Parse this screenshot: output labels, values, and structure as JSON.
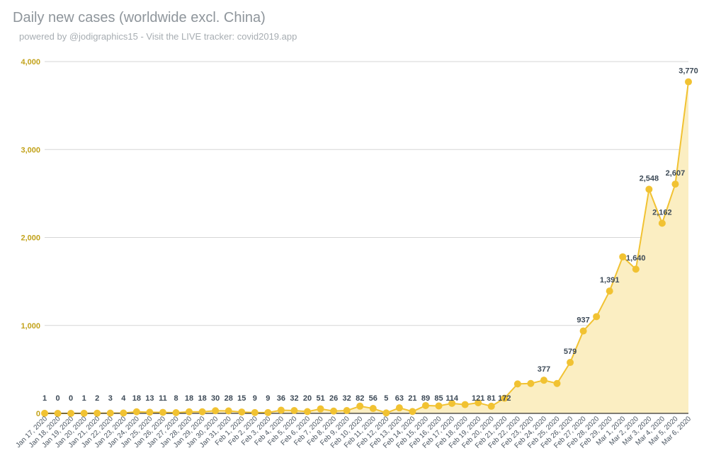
{
  "header": {
    "title": "Daily new cases (worldwide excl. China)",
    "subtitle": "powered by @jodigraphics15 - Visit the LIVE tracker: covid2019.app"
  },
  "colors": {
    "line": "#f1c232",
    "fill": "#fbeec2",
    "grid": "#d6d6d6",
    "axis": "#333333"
  },
  "chart_data": {
    "type": "area",
    "title": "Daily new cases (worldwide excl. China)",
    "xlabel": "",
    "ylabel": "",
    "ylim": [
      0,
      4000
    ],
    "yticks": [
      0,
      1000,
      2000,
      3000,
      4000
    ],
    "ytick_labels": [
      "0",
      "1,000",
      "2,000",
      "3,000",
      "4,000"
    ],
    "grid": true,
    "legend": "none",
    "categories": [
      "Jan 17, 2020",
      "Jan 18, 2020",
      "Jan 19, 2020",
      "Jan 20, 2020",
      "Jan 21, 2020",
      "Jan 22, 2020",
      "Jan 23, 2020",
      "Jan 24, 2020",
      "Jan 25, 2020",
      "Jan 26, 2020",
      "Jan 27, 2020",
      "Jan 28, 2020",
      "Jan 29, 2020",
      "Jan 30, 2020",
      "Jan 31, 2020",
      "Feb 1, 2020",
      "Feb 2, 2020",
      "Feb 3, 2020",
      "Feb 4, 2020",
      "Feb 5, 2020",
      "Feb 6, 2020",
      "Feb 7, 2020",
      "Feb 8, 2020",
      "Feb 9, 2020",
      "Feb 10, 2020",
      "Feb 11, 2020",
      "Feb 12, 2020",
      "Feb 13, 2020",
      "Feb 14, 2020",
      "Feb 15, 2020",
      "Feb 16, 2020",
      "Feb 17, 2020",
      "Feb 18, 2020",
      "Feb 19, 2020",
      "Feb 20, 2020",
      "Feb 21, 2020",
      "Feb 22, 2020",
      "Feb 23, 2020",
      "Feb 24, 2020",
      "Feb 25, 2020",
      "Feb 26, 2020",
      "Feb 27, 2020",
      "Feb 28, 2020",
      "Feb 29, 2020",
      "Mar 1, 2020",
      "Mar 2, 2020",
      "Mar 3, 2020",
      "Mar 4, 2020",
      "Mar 5, 2020",
      "Mar 6, 2020"
    ],
    "values": [
      1,
      0,
      0,
      1,
      2,
      3,
      4,
      18,
      13,
      11,
      8,
      18,
      18,
      30,
      28,
      15,
      9,
      9,
      36,
      32,
      20,
      51,
      26,
      32,
      82,
      56,
      5,
      63,
      21,
      89,
      85,
      114,
      100,
      121,
      81,
      172,
      335,
      340,
      377,
      340,
      579,
      937,
      1100,
      1391,
      1780,
      1640,
      2548,
      2162,
      2607,
      3770
    ],
    "labeled_indices": [
      0,
      1,
      2,
      3,
      4,
      5,
      6,
      7,
      8,
      9,
      10,
      11,
      12,
      13,
      14,
      15,
      16,
      17,
      18,
      19,
      20,
      21,
      22,
      23,
      24,
      25,
      26,
      27,
      28,
      29,
      30,
      31,
      33,
      34,
      35,
      38,
      40,
      41,
      43,
      45,
      46,
      47,
      48,
      49
    ]
  }
}
